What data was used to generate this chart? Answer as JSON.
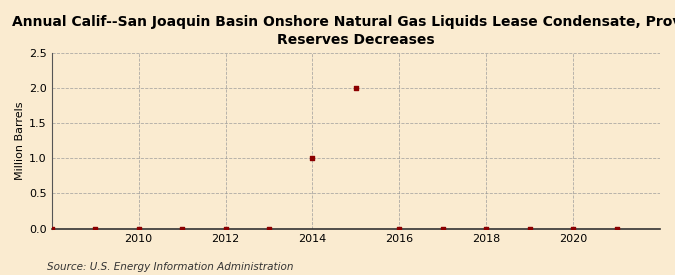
{
  "title": "Annual Calif--San Joaquin Basin Onshore Natural Gas Liquids Lease Condensate, Proved\nReserves Decreases",
  "ylabel": "Million Barrels",
  "source": "Source: U.S. Energy Information Administration",
  "years": [
    2008,
    2009,
    2010,
    2011,
    2012,
    2013,
    2014,
    2015,
    2016,
    2017,
    2018,
    2019,
    2020,
    2021
  ],
  "values": [
    0.0,
    0.0,
    0.0,
    0.0,
    0.0,
    0.0,
    1.0,
    2.0,
    0.0,
    0.0,
    0.0,
    0.0,
    0.0,
    0.0
  ],
  "xlim": [
    2008.0,
    2022.0
  ],
  "ylim": [
    0.0,
    2.5
  ],
  "yticks": [
    0.0,
    0.5,
    1.0,
    1.5,
    2.0,
    2.5
  ],
  "xticks": [
    2010,
    2012,
    2014,
    2016,
    2018,
    2020
  ],
  "background_color": "#faebd0",
  "grid_color": "#999999",
  "marker_color": "#8b0000",
  "title_fontsize": 10,
  "label_fontsize": 8,
  "tick_fontsize": 8,
  "source_fontsize": 7.5
}
